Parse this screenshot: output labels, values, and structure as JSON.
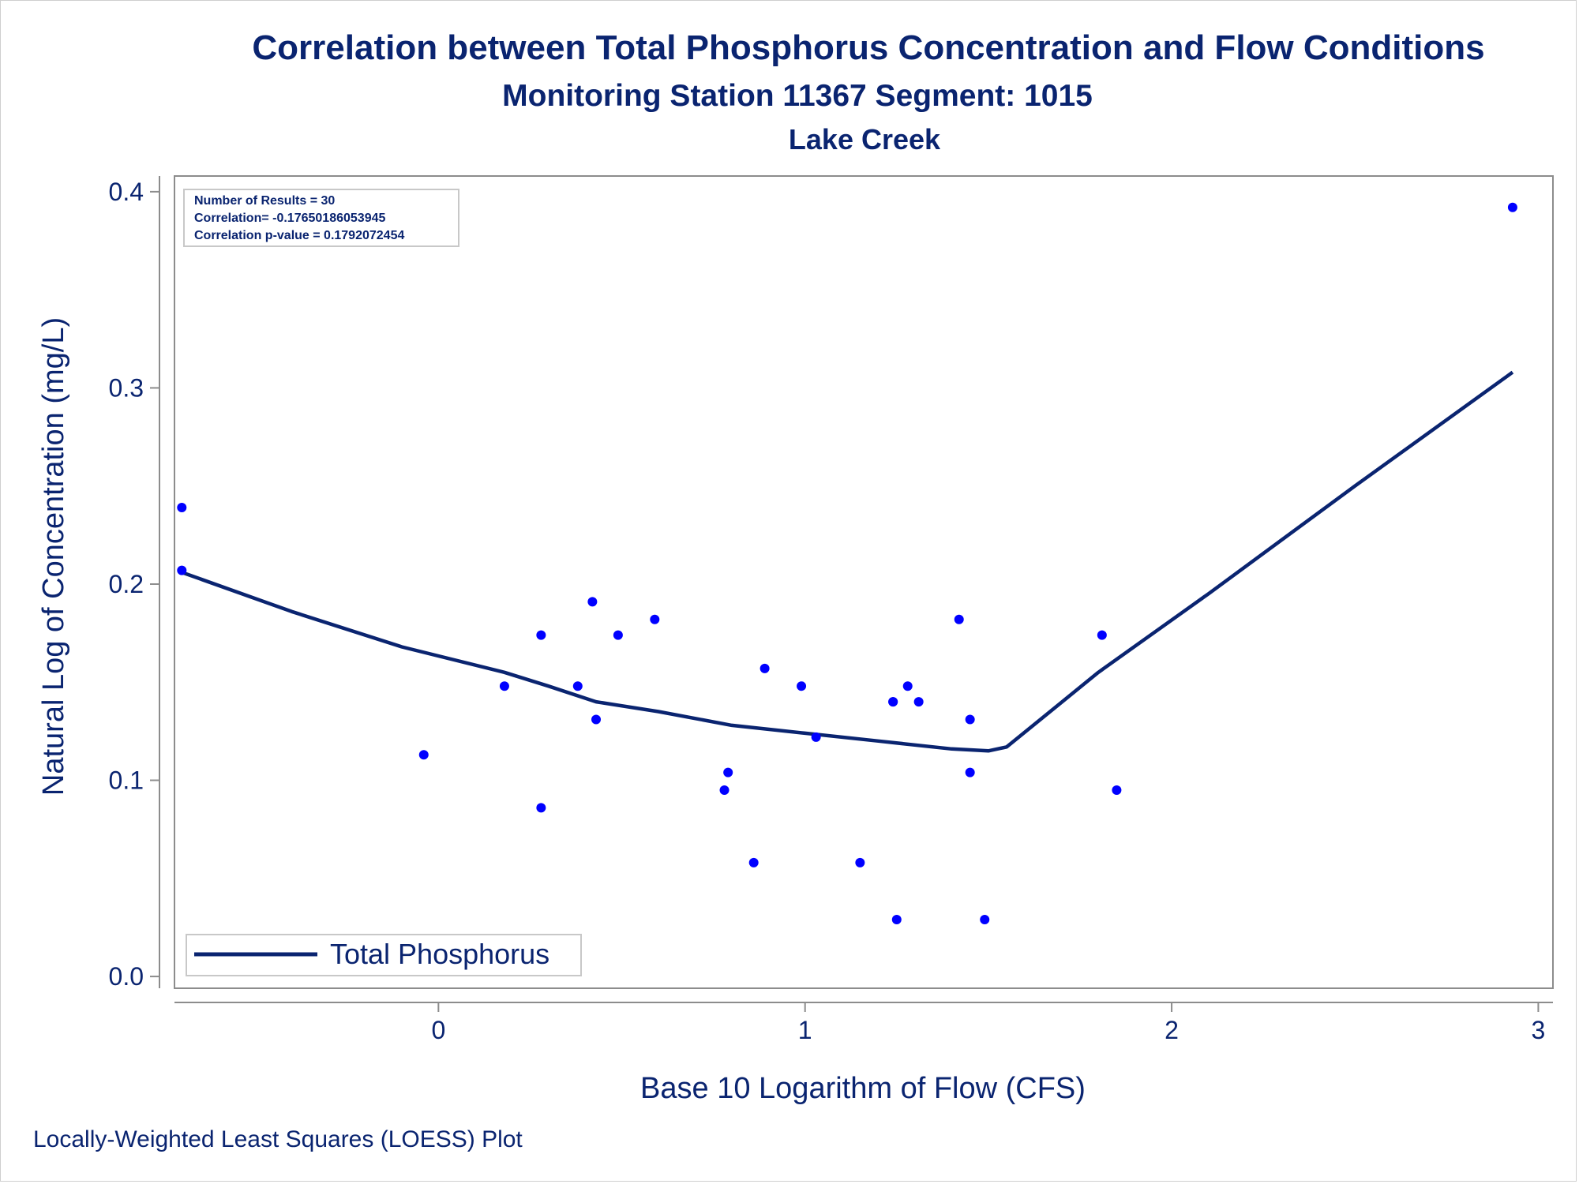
{
  "chart_data": {
    "type": "scatter",
    "title": "Correlation between Total Phosphorus Concentration and Flow Conditions",
    "subtitles": [
      "Monitoring Station 11367 Segment: 1015",
      "Lake Creek"
    ],
    "xlabel": "Base 10 Logarithm of Flow (CFS)",
    "ylabel": "Natural Log of Concentration (mg/L)",
    "xlim": [
      -0.72,
      3.04
    ],
    "ylim": [
      -0.006,
      0.408
    ],
    "xticks": [
      0,
      1,
      2,
      3
    ],
    "yticks": [
      "0.0",
      "0.1",
      "0.2",
      "0.3",
      "0.4"
    ],
    "footnote": "Locally-Weighted Least Squares (LOESS) Plot",
    "stats": [
      "Number of Results = 30",
      "Correlation= -0.17650186053945",
      "Correlation p-value = 0.1792072454"
    ],
    "legend": {
      "position": "bottom-left",
      "label": "Total Phosphorus"
    },
    "colors": {
      "points": "#0000ff",
      "line": "#0a2470",
      "text": "#0a2470",
      "frame": "#8c8c8c"
    },
    "grid": false,
    "points": [
      {
        "x": -0.7,
        "y": 0.239
      },
      {
        "x": -0.7,
        "y": 0.207
      },
      {
        "x": -0.04,
        "y": 0.113
      },
      {
        "x": 0.18,
        "y": 0.148
      },
      {
        "x": 0.28,
        "y": 0.174
      },
      {
        "x": 0.28,
        "y": 0.086
      },
      {
        "x": 0.38,
        "y": 0.148
      },
      {
        "x": 0.42,
        "y": 0.191
      },
      {
        "x": 0.43,
        "y": 0.131
      },
      {
        "x": 0.49,
        "y": 0.174
      },
      {
        "x": 0.59,
        "y": 0.182
      },
      {
        "x": 0.78,
        "y": 0.095
      },
      {
        "x": 0.79,
        "y": 0.104
      },
      {
        "x": 0.86,
        "y": 0.058
      },
      {
        "x": 0.89,
        "y": 0.157
      },
      {
        "x": 0.99,
        "y": 0.148
      },
      {
        "x": 1.03,
        "y": 0.122
      },
      {
        "x": 1.15,
        "y": 0.058
      },
      {
        "x": 1.24,
        "y": 0.14
      },
      {
        "x": 1.25,
        "y": 0.029
      },
      {
        "x": 1.28,
        "y": 0.148
      },
      {
        "x": 1.31,
        "y": 0.14
      },
      {
        "x": 1.42,
        "y": 0.182
      },
      {
        "x": 1.45,
        "y": 0.131
      },
      {
        "x": 1.45,
        "y": 0.104
      },
      {
        "x": 1.49,
        "y": 0.029
      },
      {
        "x": 1.81,
        "y": 0.174
      },
      {
        "x": 1.85,
        "y": 0.095
      },
      {
        "x": 2.93,
        "y": 0.392
      },
      {
        "x": 1.24,
        "y": 0.14
      }
    ],
    "loess_line": [
      {
        "x": -0.7,
        "y": 0.206
      },
      {
        "x": -0.4,
        "y": 0.186
      },
      {
        "x": -0.1,
        "y": 0.168
      },
      {
        "x": 0.18,
        "y": 0.155
      },
      {
        "x": 0.3,
        "y": 0.148
      },
      {
        "x": 0.43,
        "y": 0.14
      },
      {
        "x": 0.6,
        "y": 0.135
      },
      {
        "x": 0.8,
        "y": 0.128
      },
      {
        "x": 1.0,
        "y": 0.124
      },
      {
        "x": 1.2,
        "y": 0.12
      },
      {
        "x": 1.4,
        "y": 0.116
      },
      {
        "x": 1.5,
        "y": 0.115
      },
      {
        "x": 1.55,
        "y": 0.117
      },
      {
        "x": 1.8,
        "y": 0.155
      },
      {
        "x": 2.1,
        "y": 0.195
      },
      {
        "x": 2.5,
        "y": 0.25
      },
      {
        "x": 2.93,
        "y": 0.308
      }
    ]
  }
}
